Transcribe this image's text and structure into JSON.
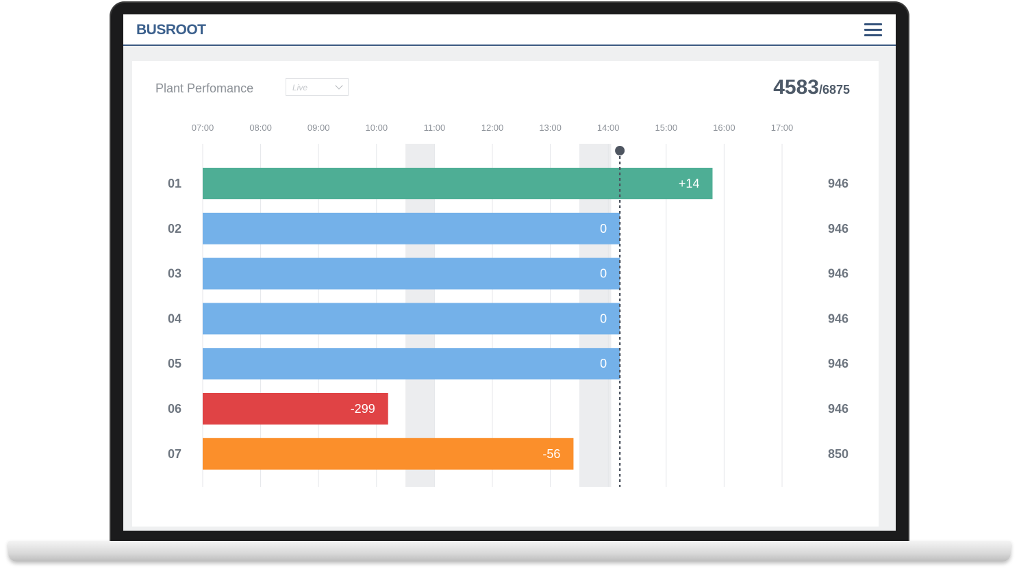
{
  "app": {
    "brand": "BUSROOT",
    "menu_icon": "hamburger-menu-icon"
  },
  "panel": {
    "title": "Plant Perfomance",
    "filter": {
      "selected": "Live"
    },
    "total": {
      "value": "4583",
      "target": "/6875"
    }
  },
  "colors": {
    "green": "#4eae95",
    "blue": "#74b1e9",
    "red": "#e04345",
    "orange": "#fb8f2b",
    "brand": "#3a5f8c"
  },
  "chart_data": {
    "type": "bar",
    "orientation": "horizontal",
    "time_axis": [
      "07:00",
      "08:00",
      "09:00",
      "10:00",
      "11:00",
      "12:00",
      "13:00",
      "14:00",
      "15:00",
      "16:00",
      "17:00"
    ],
    "shaded_periods": [
      [
        10.5,
        11.0
      ],
      [
        13.5,
        14.05
      ]
    ],
    "current_time": 14.2,
    "rows": [
      {
        "label": "01",
        "end_hour": 15.8,
        "delta": "+14",
        "status": "green",
        "total": "946"
      },
      {
        "label": "02",
        "end_hour": 14.2,
        "delta": "0",
        "status": "blue",
        "total": "946"
      },
      {
        "label": "03",
        "end_hour": 14.2,
        "delta": "0",
        "status": "blue",
        "total": "946"
      },
      {
        "label": "04",
        "end_hour": 14.2,
        "delta": "0",
        "status": "blue",
        "total": "946"
      },
      {
        "label": "05",
        "end_hour": 14.2,
        "delta": "0",
        "status": "blue",
        "total": "946"
      },
      {
        "label": "06",
        "end_hour": 10.2,
        "delta": "-299",
        "status": "red",
        "total": "946"
      },
      {
        "label": "07",
        "end_hour": 13.4,
        "delta": "-56",
        "status": "orange",
        "total": "850"
      }
    ]
  }
}
